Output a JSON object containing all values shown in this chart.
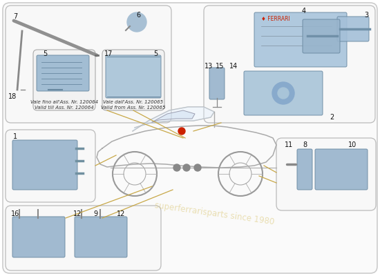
{
  "bg_color": "#ffffff",
  "box_bg": "#f7f7f7",
  "box_edge": "#c0c0c0",
  "part_blue": "#aabfd8",
  "part_blue2": "#c0d5e8",
  "line_gold": "#c8a848",
  "text_dark": "#1a1a1a",
  "car_line": "#b0b0b0",
  "watermark_text": "superferrarisparts since 1980",
  "watermark_color": "#dcc878",
  "note1_it": "Vale fino all'Ass. Nr. 120064",
  "note1_en": "Valid till Ass. Nr. 120064",
  "note2_it": "Vale dall'Ass. Nr. 120065",
  "note2_en": "Valid from Ass. Nr. 120065",
  "ferrari_text": "FERRARI"
}
